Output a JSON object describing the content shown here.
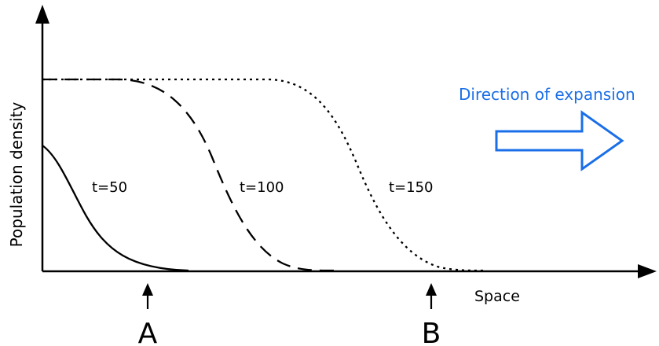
{
  "axes": {
    "x_label": "Space",
    "y_label": "Population density"
  },
  "curves": [
    {
      "label": "t=50",
      "line_style": "solid"
    },
    {
      "label": "t=100",
      "line_style": "dashed"
    },
    {
      "label": "t=150",
      "line_style": "dotted"
    }
  ],
  "markers": [
    {
      "label": "A"
    },
    {
      "label": "B"
    }
  ],
  "expansion": {
    "label": "Direction of expansion",
    "color": "#1a6fe8"
  }
}
